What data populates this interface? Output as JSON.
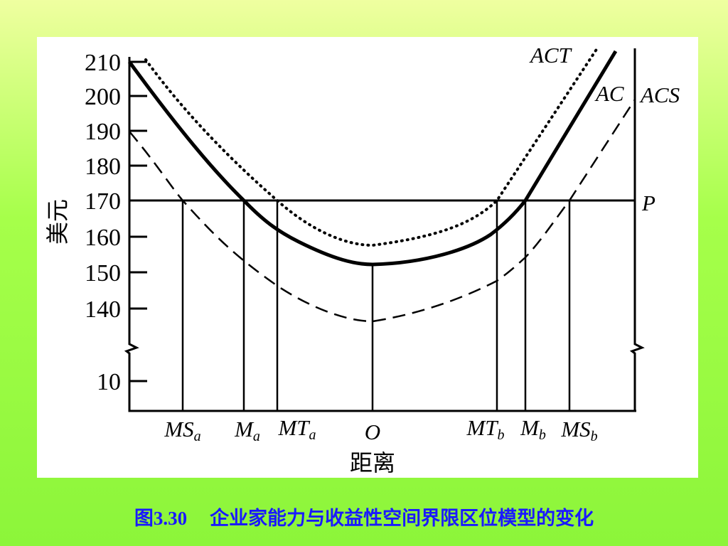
{
  "y_axis": {
    "label": "美元",
    "tick_labels": [
      "210",
      "200",
      "190",
      "180",
      "170",
      "160",
      "150",
      "140",
      "10"
    ]
  },
  "x_axis": {
    "label": "距离",
    "points": [
      {
        "main": "MS",
        "sub": "a"
      },
      {
        "main": "M",
        "sub": "a"
      },
      {
        "main": "MT",
        "sub": "a"
      },
      {
        "main": "O"
      },
      {
        "main": "MT",
        "sub": "b"
      },
      {
        "main": "M",
        "sub": "b"
      },
      {
        "main": "MS",
        "sub": "b"
      }
    ]
  },
  "curves": {
    "act": "ACT",
    "ac": "AC",
    "acs": "ACS",
    "price": "P"
  },
  "caption": {
    "number": "图3.30",
    "title": "企业家能力与收益性空间界限区位模型的变化"
  }
}
